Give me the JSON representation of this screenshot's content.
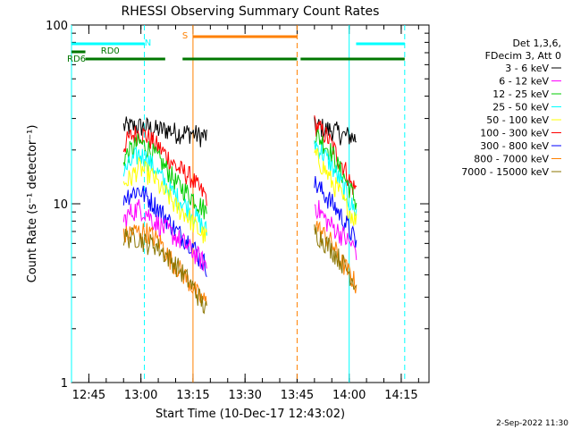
{
  "chart_data": {
    "type": "line",
    "title": "RHESSI Observing Summary Count Rates",
    "xlabel": "Start Time (10-Dec-17 12:43:02)",
    "ylabel": "Count Rate (s⁻¹ detector⁻¹)",
    "yscale": "log",
    "ylim": [
      1,
      100
    ],
    "xlim": [
      "12:40",
      "14:23"
    ],
    "x_ticks": [
      "12:45",
      "13:00",
      "13:15",
      "13:30",
      "13:45",
      "14:00",
      "14:15"
    ],
    "y_ticks": [
      {
        "value": 1,
        "label": "1"
      },
      {
        "value": 10,
        "label": "10"
      },
      {
        "value": 100,
        "label": "100"
      }
    ],
    "legend": {
      "position": "right",
      "header": [
        "Det 1,3,6,",
        "FDecim 3, Att 0"
      ],
      "entries": [
        {
          "label": "3 - 6 keV",
          "color": "#000000"
        },
        {
          "label": "6 - 12 keV",
          "color": "#ff00ff"
        },
        {
          "label": "12 - 25 keV",
          "color": "#00cc00"
        },
        {
          "label": "25 - 50 keV",
          "color": "#00ffff"
        },
        {
          "label": "50 - 100 keV",
          "color": "#ffff00"
        },
        {
          "label": "100 - 300 keV",
          "color": "#ff0000"
        },
        {
          "label": "300 - 800 keV",
          "color": "#0000ff"
        },
        {
          "label": "800 - 7000 keV",
          "color": "#ff8000"
        },
        {
          "label": "7000 - 15000 keV",
          "color": "#8b7500"
        }
      ]
    },
    "series": [
      {
        "name": "3 - 6 keV",
        "color": "#000000",
        "segments": [
          {
            "start": "12:55",
            "end": "13:19",
            "values": [
              27,
              27,
              27,
              27,
              26,
              26,
              26,
              25,
              25,
              25,
              24,
              24
            ]
          },
          {
            "start": "13:50",
            "end": "14:02",
            "values": [
              27,
              27,
              26,
              26,
              25,
              24,
              24,
              23
            ]
          }
        ]
      },
      {
        "name": "100 - 300 keV",
        "color": "#ff0000",
        "segments": [
          {
            "start": "12:55",
            "end": "13:19",
            "values": [
              21,
              24,
              25,
              24,
              22,
              20,
              18,
              16,
              15,
              14,
              12,
              11
            ]
          },
          {
            "start": "13:50",
            "end": "14:02",
            "values": [
              28,
              26,
              24,
              21,
              18,
              16,
              13,
              12
            ]
          }
        ]
      },
      {
        "name": "12 - 25 keV",
        "color": "#00cc00",
        "segments": [
          {
            "start": "12:55",
            "end": "13:19",
            "values": [
              18,
              20,
              22,
              21,
              19,
              17,
              15,
              13,
              12,
              11,
              10,
              9
            ]
          },
          {
            "start": "13:50",
            "end": "14:02",
            "values": [
              25,
              23,
              21,
              19,
              16,
              14,
              12,
              10
            ]
          }
        ]
      },
      {
        "name": "25 - 50 keV",
        "color": "#00ffff",
        "segments": [
          {
            "start": "12:55",
            "end": "13:19",
            "values": [
              15,
              17,
              19,
              18,
              16,
              14,
              12,
              11,
              10,
              9,
              8,
              7
            ]
          },
          {
            "start": "13:50",
            "end": "14:02",
            "values": [
              22,
              20,
              18,
              16,
              14,
              12,
              10,
              9
            ]
          }
        ]
      },
      {
        "name": "50 - 100 keV",
        "color": "#ffff00",
        "segments": [
          {
            "start": "12:55",
            "end": "13:19",
            "values": [
              13,
              14,
              16,
              15,
              14,
              12,
              11,
              9.5,
              9,
              8,
              7,
              6.5
            ]
          },
          {
            "start": "13:50",
            "end": "14:02",
            "values": [
              19,
              17,
              15,
              13,
              12,
              10,
              9,
              8
            ]
          }
        ]
      },
      {
        "name": "300 - 800 keV",
        "color": "#0000ff",
        "segments": [
          {
            "start": "12:55",
            "end": "13:19",
            "values": [
              11,
              11.5,
              12,
              11,
              10,
              9,
              8,
              7,
              6.5,
              6,
              5,
              4.5
            ]
          },
          {
            "start": "13:50",
            "end": "14:02",
            "values": [
              13,
              12,
              11,
              10,
              9,
              8,
              7,
              6
            ]
          }
        ]
      },
      {
        "name": "6 - 12 keV",
        "color": "#ff00ff",
        "segments": [
          {
            "start": "12:55",
            "end": "13:19",
            "values": [
              8,
              9,
              9.5,
              9,
              8,
              7.5,
              7,
              6.5,
              6,
              5.5,
              5,
              4.5
            ]
          },
          {
            "start": "13:50",
            "end": "14:02",
            "values": [
              10,
              9,
              8,
              7.5,
              7,
              6.5,
              6,
              5.5
            ]
          }
        ]
      },
      {
        "name": "800 - 7000 keV",
        "color": "#ff8000",
        "segments": [
          {
            "start": "12:55",
            "end": "13:19",
            "values": [
              6.5,
              7,
              7,
              7,
              6.5,
              6,
              5,
              4.5,
              4,
              3.5,
              3,
              2.8
            ]
          },
          {
            "start": "13:50",
            "end": "14:02",
            "values": [
              8,
              7,
              6.5,
              6,
              5,
              4.5,
              4,
              3.5
            ]
          }
        ]
      },
      {
        "name": "7000 - 15000 keV",
        "color": "#8b7500",
        "segments": [
          {
            "start": "12:55",
            "end": "13:19",
            "values": [
              6.5,
              6.5,
              6.5,
              6,
              6,
              5.5,
              5,
              4.5,
              4,
              3.5,
              3,
              2.5
            ]
          },
          {
            "start": "13:50",
            "end": "14:02",
            "values": [
              7,
              6.5,
              6,
              5.5,
              5,
              4.5,
              4,
              3.5
            ]
          }
        ]
      }
    ],
    "flags": [
      {
        "name": "N",
        "color": "#00ffff",
        "segments": [
          [
            "12:40",
            "13:01"
          ],
          [
            "14:02",
            "14:16"
          ]
        ]
      },
      {
        "name": "S",
        "color": "#ff8000",
        "segments": [
          [
            "13:15",
            "13:45"
          ]
        ]
      },
      {
        "name": "RD0",
        "color": "#007700",
        "segments": [
          [
            "12:40",
            "12:44"
          ]
        ]
      },
      {
        "name": "RD6",
        "color": "#007700",
        "segments": [
          [
            "12:44",
            "13:07"
          ],
          [
            "13:12",
            "13:45"
          ],
          [
            "13:46",
            "13:53"
          ],
          [
            "13:53",
            "14:16"
          ]
        ]
      }
    ],
    "vertical_lines": [
      {
        "time": "12:40",
        "color": "#00ffff",
        "style": "solid"
      },
      {
        "time": "13:01",
        "color": "#00ffff",
        "style": "dashed"
      },
      {
        "time": "13:15",
        "color": "#ff8000",
        "style": "solid"
      },
      {
        "time": "13:45",
        "color": "#ff8000",
        "style": "dashed"
      },
      {
        "time": "14:00",
        "color": "#00ffff",
        "style": "solid"
      },
      {
        "time": "14:16",
        "color": "#00ffff",
        "style": "dashed"
      }
    ],
    "grid": false
  },
  "footer": {
    "timestamp": "2-Sep-2022 11:30"
  }
}
